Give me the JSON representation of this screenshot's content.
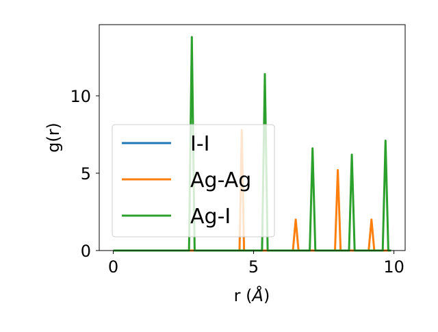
{
  "chart_data": {
    "type": "line",
    "title": "",
    "xlabel": "r (",
    "xlabel_symbol": "Å",
    "xlabel_suffix": ")",
    "ylabel": "g(r)",
    "xlim": [
      -0.5,
      10.4
    ],
    "ylim": [
      0,
      14.6
    ],
    "xticks": [
      0,
      5,
      10
    ],
    "xtick_labels": [
      "0",
      "5",
      "10"
    ],
    "yticks": [
      0,
      5,
      10
    ],
    "ytick_labels": [
      "0",
      "5",
      "10"
    ],
    "grid": false,
    "legend_position": "center-left",
    "series": [
      {
        "name": "I-I",
        "color": "#1f77b4",
        "x": [
          0,
          9.9
        ],
        "y": [
          0,
          0
        ]
      },
      {
        "name": "Ag-Ag",
        "color": "#ff7f0e",
        "x": [
          0,
          4.5,
          4.58,
          4.66,
          6.4,
          6.5,
          6.6,
          7.9,
          8.0,
          8.1,
          9.1,
          9.2,
          9.3,
          9.9
        ],
        "y": [
          0,
          0,
          7.8,
          0,
          0,
          2.0,
          0,
          0,
          5.2,
          0,
          0,
          2.0,
          0,
          0
        ]
      },
      {
        "name": "Ag-I",
        "color": "#2ca02c",
        "x": [
          0,
          2.7,
          2.8,
          2.9,
          5.3,
          5.4,
          5.5,
          7.0,
          7.1,
          7.2,
          8.4,
          8.5,
          8.6,
          9.6,
          9.7,
          9.8,
          9.9
        ],
        "y": [
          0,
          0,
          13.8,
          0,
          0,
          11.4,
          0,
          0,
          6.6,
          0,
          0,
          6.2,
          0,
          0,
          7.1,
          0,
          0
        ]
      }
    ]
  }
}
